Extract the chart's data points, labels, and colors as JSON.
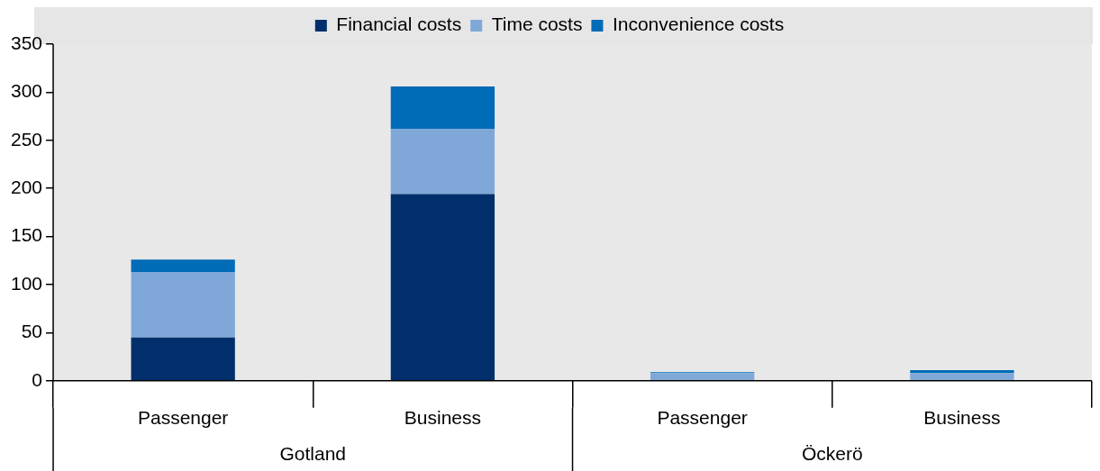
{
  "chart_data": {
    "type": "bar",
    "stacked": true,
    "categories": [
      "Passenger",
      "Business",
      "Passenger",
      "Business"
    ],
    "series": [
      {
        "name": "Financial costs",
        "color": "#002f6c",
        "values": [
          45,
          194,
          0,
          0
        ]
      },
      {
        "name": "Time costs",
        "color": "#7fa8d9",
        "values": [
          68,
          68,
          8,
          8
        ]
      },
      {
        "name": "Inconvenience costs",
        "color": "#006bb6",
        "values": [
          13,
          44,
          1,
          3
        ]
      }
    ],
    "ylim": [
      0,
      350
    ],
    "yticks": [
      0,
      50,
      100,
      150,
      200,
      250,
      300,
      350
    ],
    "grid": false,
    "legend": "top",
    "annotations": [
      "Gotland",
      "Öckerö"
    ]
  }
}
